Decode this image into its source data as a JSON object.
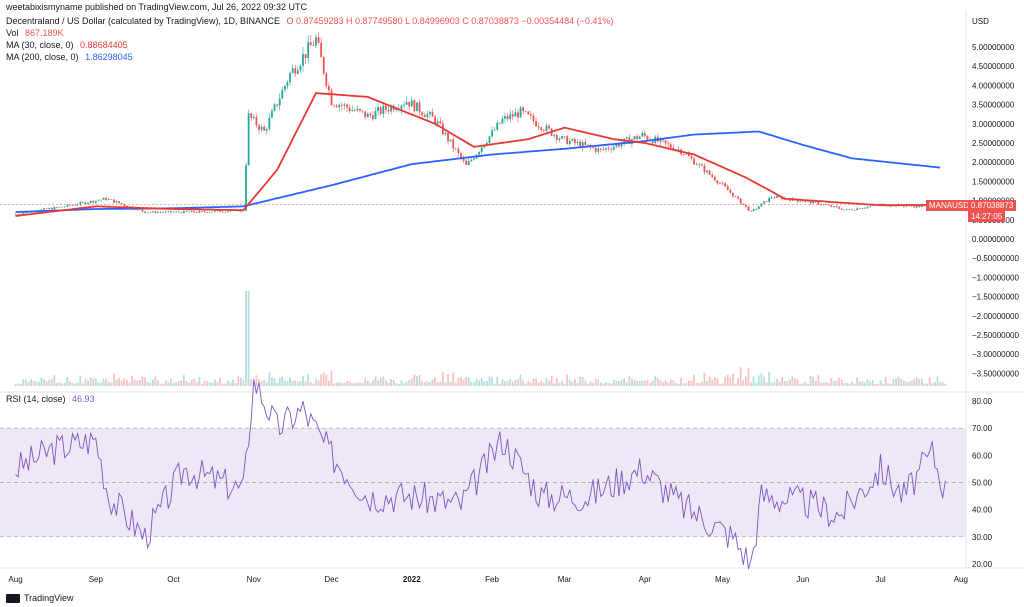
{
  "header": {
    "attribution": "weetabixismyname published on TradingView.com, Jul 26, 2022 09:32 UTC"
  },
  "legend": {
    "symbol_title": "Decentraland / US Dollar (calculated by TradingView), 1D, BINANCE",
    "ohlc": "O 0.87459283  H 0.87749580  L 0.84996903  C 0.87038873  −0.00354484 (−0.41%)",
    "vol_label": "Vol",
    "vol_value": "867.189K",
    "ma30_label": "MA (30, close, 0)",
    "ma30_value": "0.88684405",
    "ma200_label": "MA (200, close, 0)",
    "ma200_value": "1.86298045",
    "rsi_label": "RSI (14, close)",
    "rsi_value": "46.93"
  },
  "price_tag": {
    "symbol": "MANAUSD",
    "price": "0.87038873",
    "time": "14:27:05"
  },
  "footer": {
    "brand": "TradingView"
  },
  "colors": {
    "up": "#26a69a",
    "down": "#ef5350",
    "ma30": "#e53935",
    "ma200": "#2962ff",
    "rsi": "#7e57c2",
    "rsi_band": "#ede7f6"
  },
  "chart_data": [
    {
      "type": "line",
      "title": "Decentraland / US Dollar (calculated by TradingView), 1D, BINANCE",
      "ylabel": "USD",
      "y_ticks": [
        "5.00000000",
        "4.50000000",
        "4.00000000",
        "3.50000000",
        "3.00000000",
        "2.50000000",
        "2.00000000",
        "1.50000000",
        "1.00000000",
        "0.50000000",
        "0.00000000",
        "−0.50000000",
        "−1.00000000",
        "−1.50000000",
        "−2.00000000",
        "−2.50000000",
        "−3.00000000",
        "−3.50000000"
      ],
      "x_ticks": [
        "Aug",
        "Sep",
        "Oct",
        "Nov",
        "Dec",
        "2022",
        "Feb",
        "Mar",
        "Apr",
        "May",
        "Jun",
        "Jul",
        "Aug"
      ],
      "series": [
        {
          "name": "MA (30, close, 0)",
          "x": [
            "2021-08-01",
            "2021-09-01",
            "2021-10-01",
            "2021-10-28",
            "2021-11-10",
            "2021-11-25",
            "2021-12-15",
            "2022-01-10",
            "2022-01-25",
            "2022-02-15",
            "2022-03-01",
            "2022-03-20",
            "2022-04-01",
            "2022-04-20",
            "2022-05-10",
            "2022-05-25",
            "2022-06-15",
            "2022-07-01",
            "2022-07-24"
          ],
          "values": [
            0.6,
            0.85,
            0.78,
            0.75,
            1.8,
            3.8,
            3.7,
            3.0,
            2.4,
            2.6,
            2.9,
            2.6,
            2.5,
            2.2,
            1.6,
            1.05,
            0.95,
            0.88,
            0.89
          ]
        },
        {
          "name": "MA (200, close, 0)",
          "x": [
            "2021-08-01",
            "2021-09-01",
            "2021-10-01",
            "2021-10-28",
            "2021-12-01",
            "2022-01-01",
            "2022-02-01",
            "2022-03-01",
            "2022-04-01",
            "2022-04-20",
            "2022-05-15",
            "2022-06-01",
            "2022-06-20",
            "2022-07-24"
          ],
          "values": [
            0.7,
            0.78,
            0.8,
            0.85,
            1.4,
            1.95,
            2.2,
            2.35,
            2.55,
            2.72,
            2.8,
            2.45,
            2.1,
            1.86
          ]
        },
        {
          "name": "Close",
          "x": [
            "2021-08-01",
            "2021-08-20",
            "2021-09-05",
            "2021-09-20",
            "2021-10-10",
            "2021-10-28",
            "2021-10-30",
            "2021-11-05",
            "2021-11-15",
            "2021-11-25",
            "2021-12-01",
            "2021-12-15",
            "2021-12-30",
            "2022-01-10",
            "2022-01-22",
            "2022-02-05",
            "2022-02-12",
            "2022-02-28",
            "2022-03-15",
            "2022-03-31",
            "2022-04-15",
            "2022-05-01",
            "2022-05-12",
            "2022-05-20",
            "2022-06-05",
            "2022-06-18",
            "2022-07-01",
            "2022-07-15",
            "2022-07-26"
          ],
          "values": [
            0.65,
            0.85,
            1.05,
            0.7,
            0.7,
            0.75,
            3.2,
            2.8,
            4.3,
            5.2,
            3.6,
            3.2,
            3.6,
            3.1,
            1.9,
            3.1,
            3.3,
            2.6,
            2.3,
            2.7,
            2.3,
            1.4,
            0.7,
            1.1,
            0.95,
            0.75,
            0.9,
            0.85,
            0.87
          ]
        }
      ],
      "ylim": [
        -3.7,
        5.6
      ]
    },
    {
      "type": "line",
      "title": "RSI (14, close)",
      "y_ticks": [
        "80.00",
        "70.00",
        "60.00",
        "50.00",
        "40.00",
        "30.00",
        "20.00"
      ],
      "series": [
        {
          "name": "RSI (14, close)",
          "x": [
            "2021-08-01",
            "2021-08-15",
            "2021-09-01",
            "2021-09-06",
            "2021-09-20",
            "2021-10-05",
            "2021-10-20",
            "2021-10-28",
            "2021-11-01",
            "2021-11-10",
            "2021-11-20",
            "2021-12-01",
            "2021-12-15",
            "2022-01-01",
            "2022-01-20",
            "2022-02-05",
            "2022-02-20",
            "2022-03-10",
            "2022-03-31",
            "2022-04-15",
            "2022-05-05",
            "2022-05-12",
            "2022-05-16",
            "2022-06-01",
            "2022-06-15",
            "2022-07-01",
            "2022-07-10",
            "2022-07-21",
            "2022-07-26"
          ],
          "values": [
            55,
            62,
            66,
            45,
            30,
            55,
            50,
            47,
            88,
            70,
            77,
            60,
            45,
            45,
            42,
            66,
            45,
            45,
            55,
            42,
            30,
            20,
            45,
            43,
            38,
            55,
            45,
            61,
            46.93
          ]
        }
      ],
      "levels": [
        70,
        50,
        30
      ],
      "ylim": [
        17,
        88
      ]
    }
  ]
}
